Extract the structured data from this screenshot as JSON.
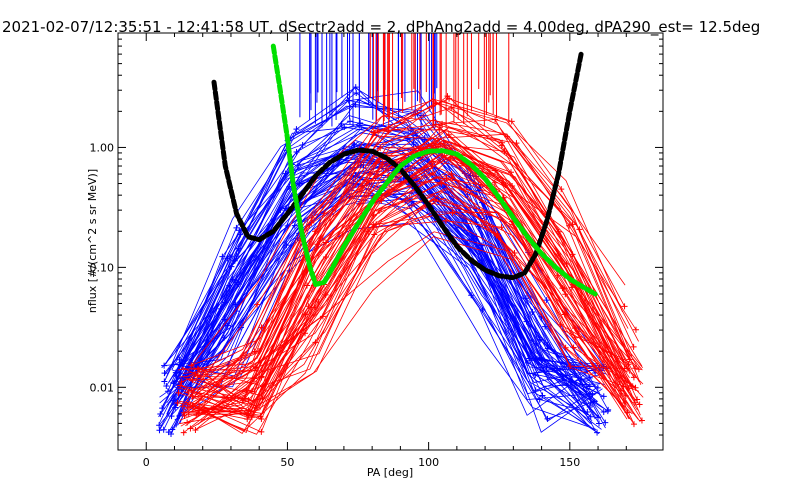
{
  "chart_data": {
    "type": "line",
    "title": "2021-02-07/12:35:51 - 12:41:58 UT, dSectr2add = 2, dPhAng2add = 4.00deg, dPA290_est=  12.5deg",
    "xlabel": "PA [deg]",
    "ylabel": "nflux [#/(cm^2 s sr MeV)]",
    "xscale": "linear",
    "yscale": "log",
    "xlim": [
      -10,
      183
    ],
    "ylim": [
      0.003,
      9
    ],
    "x_ticks": [
      0,
      50,
      100,
      150
    ],
    "x_tick_labels": [
      "0",
      "50",
      "100",
      "150"
    ],
    "y_ticks": [
      0.01,
      0.1,
      1
    ],
    "y_tick_labels": [
      "0.01",
      "0.10",
      "1.00"
    ],
    "grid": false,
    "legend": "none",
    "colors": {
      "blue": "#0000ff",
      "red": "#ff0000",
      "black": "#000000",
      "green": "#00e000"
    },
    "series": [
      {
        "color": "blue",
        "style": "thin lines with + markers",
        "description_values": {
          "peak_x": 79,
          "peak_y": 0.95,
          "x_range": [
            8,
            160
          ],
          "min_y": 0.004
        }
      },
      {
        "color": "red",
        "style": "thin lines with + markers",
        "description_values": {
          "peak_x": 104,
          "peak_y": 0.93,
          "x_range": [
            15,
            172
          ],
          "min_y": 0.004
        }
      },
      {
        "color": "black",
        "style": "thick dashed",
        "x": [
          24,
          28,
          32,
          36,
          40,
          45,
          50,
          55,
          60,
          65,
          70,
          75,
          80,
          85,
          90,
          95,
          100,
          105,
          110,
          115,
          120,
          125,
          130,
          134,
          138,
          142,
          146,
          150,
          154
        ],
        "y": [
          3.5,
          0.7,
          0.28,
          0.18,
          0.17,
          0.2,
          0.28,
          0.4,
          0.58,
          0.75,
          0.88,
          0.95,
          0.93,
          0.82,
          0.66,
          0.48,
          0.33,
          0.22,
          0.15,
          0.115,
          0.095,
          0.085,
          0.082,
          0.09,
          0.13,
          0.25,
          0.6,
          2.0,
          6.0
        ]
      },
      {
        "color": "green",
        "style": "thick dashed",
        "x": [
          45,
          47,
          50,
          52,
          55,
          58,
          60,
          63,
          66,
          70,
          75,
          80,
          85,
          90,
          95,
          100,
          105,
          110,
          115,
          120,
          125,
          130,
          135,
          140,
          145,
          150,
          155,
          159
        ],
        "y": [
          7.0,
          3.5,
          1.2,
          0.5,
          0.2,
          0.1,
          0.072,
          0.075,
          0.1,
          0.15,
          0.23,
          0.35,
          0.5,
          0.7,
          0.85,
          0.93,
          0.94,
          0.88,
          0.72,
          0.55,
          0.38,
          0.26,
          0.18,
          0.13,
          0.1,
          0.08,
          0.068,
          0.06
        ]
      }
    ]
  }
}
